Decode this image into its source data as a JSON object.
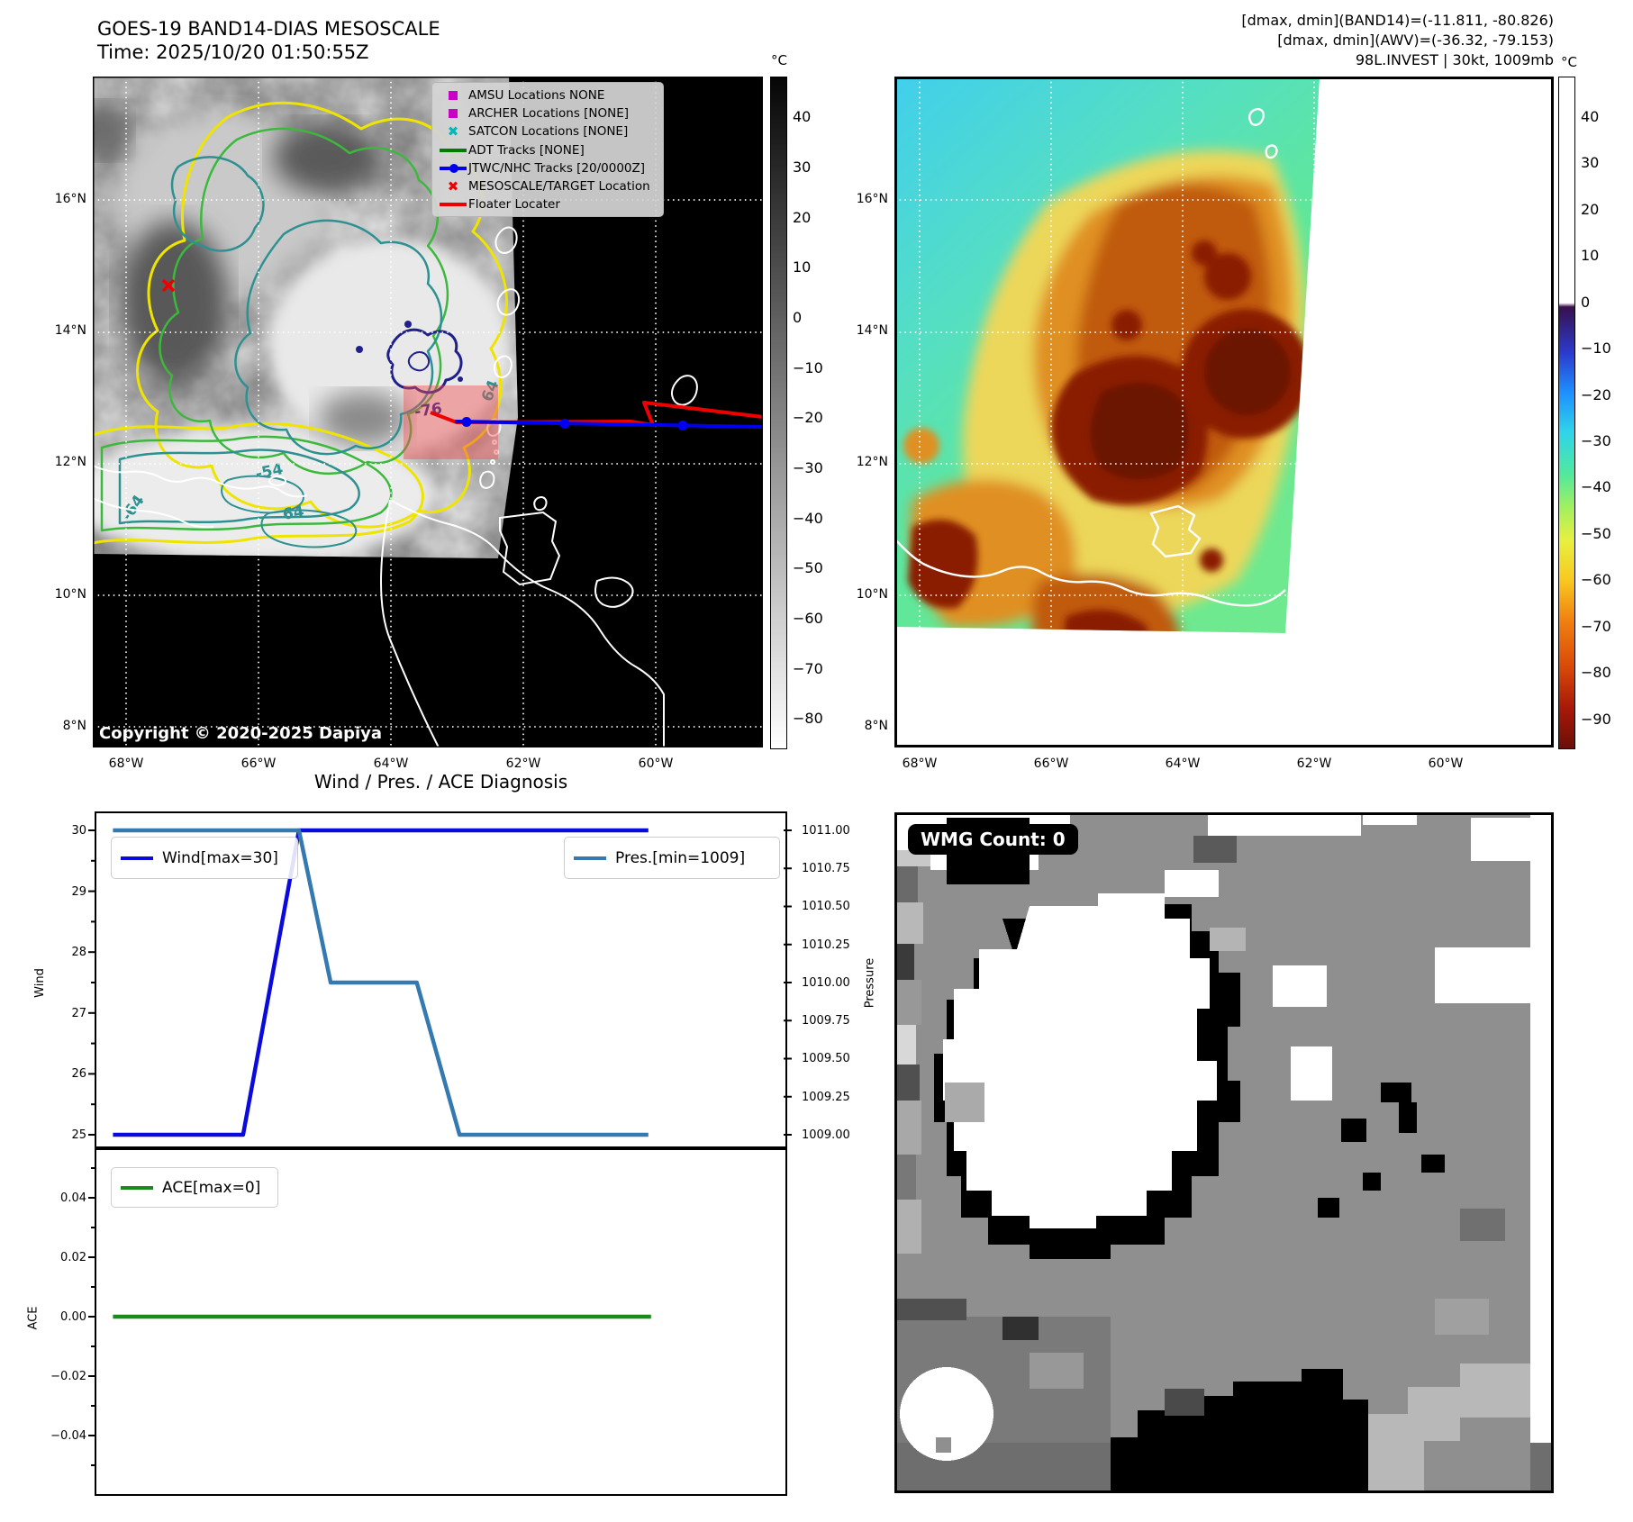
{
  "header": {
    "title": "GOES-19 BAND14-DIAS MESOSCALE",
    "time_line": "Time: 2025/10/20 01:50:55Z",
    "info_line1": "[dmax, dmin](BAND14)=(-11.811, -80.826)",
    "info_line2": "[dmax, dmin](AWV)=(-36.32, -79.153)",
    "info_line3": "98L.INVEST | 30kt, 1009mb"
  },
  "map_left": {
    "copyright": "Copyright © 2020-2025 Dapiya",
    "lat_ticks": [
      "16°N",
      "14°N",
      "12°N",
      "10°N",
      "8°N"
    ],
    "lon_ticks": [
      "68°W",
      "66°W",
      "64°W",
      "62°W",
      "60°W"
    ],
    "legend_items": [
      {
        "label": "AMSU Locations NONE",
        "marker": "square",
        "color": "#c800c8"
      },
      {
        "label": "ARCHER Locations [NONE]",
        "marker": "square",
        "color": "#c800c8"
      },
      {
        "label": "SATCON Locations [NONE]",
        "marker": "x",
        "color": "#00b8b8"
      },
      {
        "label": "ADT Tracks [NONE]",
        "marker": "line",
        "color": "#007d00"
      },
      {
        "label": "JTWC/NHC Tracks [20/0000Z]",
        "marker": "line-dot",
        "color": "#0000ee"
      },
      {
        "label": "MESOSCALE/TARGET Location",
        "marker": "x",
        "color": "#ee0000"
      },
      {
        "label": "Floater Locater",
        "marker": "line",
        "color": "#ee0000"
      }
    ],
    "contour_labels": [
      "-76",
      "64",
      "-54",
      "-64",
      "64"
    ],
    "colorbar": {
      "unit": "°C",
      "ticks": [
        "40",
        "30",
        "20",
        "10",
        "0",
        "−10",
        "−20",
        "−30",
        "−40",
        "−50",
        "−60",
        "−70",
        "−80"
      ]
    }
  },
  "map_right": {
    "lat_ticks": [
      "16°N",
      "14°N",
      "12°N",
      "10°N",
      "8°N"
    ],
    "lon_ticks": [
      "68°W",
      "66°W",
      "64°W",
      "62°W",
      "60°W"
    ],
    "colorbar": {
      "unit": "°C",
      "ticks": [
        "40",
        "30",
        "20",
        "10",
        "0",
        "−10",
        "−20",
        "−30",
        "−40",
        "−50",
        "−60",
        "−70",
        "−80",
        "−90"
      ]
    }
  },
  "charts": {
    "title": "Wind / Pres. / ACE Diagnosis",
    "wind_legend": "Wind[max=30]",
    "pres_legend": "Pres.[min=1009]",
    "ace_legend": "ACE[max=0]",
    "wind_ylabel": "Wind",
    "pres_ylabel": "Pressure",
    "ace_ylabel": "ACE",
    "wind_ticks": [
      "30",
      "29",
      "28",
      "27",
      "26",
      "25"
    ],
    "pres_ticks": [
      "1011.00",
      "1010.75",
      "1010.50",
      "1010.25",
      "1010.00",
      "1009.75",
      "1009.50",
      "1009.25",
      "1009.00"
    ],
    "ace_ticks": [
      "0.04",
      "0.02",
      "0.00",
      "−0.02",
      "−0.04"
    ]
  },
  "wmg": {
    "count_label": "WMG Count: 0"
  },
  "colors": {
    "wind_line": "#0a0add",
    "pres_line": "#3579b1",
    "ace_line": "#1a8a1a",
    "track_red": "#ee0000",
    "track_blue": "#0000ee",
    "contour_yellow": "#efe400",
    "contour_green": "#3cb83c",
    "contour_teal": "#2e9090",
    "contour_navy": "#20208c",
    "target_fill": "rgba(240,80,80,0.45)"
  },
  "chart_data": [
    {
      "type": "line",
      "title": "Wind / Pres. / ACE Diagnosis",
      "axes": {
        "wind": {
          "label": "Wind",
          "range": [
            25,
            30
          ],
          "side": "left"
        },
        "pressure": {
          "label": "Pressure",
          "range": [
            1009,
            1011
          ],
          "side": "right"
        }
      },
      "series": [
        {
          "name": "Wind[max=30]",
          "axis": "wind",
          "color": "#0a0add",
          "points": [
            [
              0.024,
              25
            ],
            [
              0.213,
              25
            ],
            [
              0.294,
              30
            ],
            [
              0.801,
              30
            ]
          ]
        },
        {
          "name": "Pres.[min=1009]",
          "axis": "pressure",
          "color": "#3579b1",
          "points": [
            [
              0.024,
              1011
            ],
            [
              0.294,
              1011
            ],
            [
              0.34,
              1010
            ],
            [
              0.465,
              1010
            ],
            [
              0.527,
              1009
            ],
            [
              0.801,
              1009
            ]
          ]
        }
      ],
      "grid": false,
      "legend_position": "upper left / upper right"
    },
    {
      "type": "line",
      "axes": {
        "ace": {
          "label": "ACE",
          "range": [
            -0.0567,
            0.0567
          ],
          "side": "left"
        }
      },
      "series": [
        {
          "name": "ACE[max=0]",
          "axis": "ace",
          "color": "#1a8a1a",
          "points": [
            [
              0.024,
              0
            ],
            [
              0.805,
              0
            ]
          ]
        }
      ],
      "grid": false,
      "legend_position": "upper left"
    }
  ]
}
